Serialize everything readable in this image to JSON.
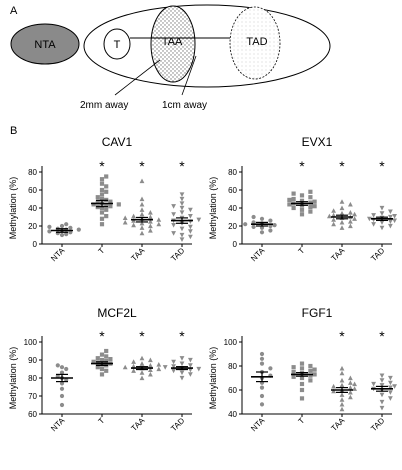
{
  "panel_a": {
    "label": "A",
    "labels": {
      "nta": "NTA",
      "t": "T",
      "taa": "TAA",
      "tad": "TAD"
    },
    "distances": {
      "near": "2mm away",
      "far": "1cm away"
    },
    "colors": {
      "nta_fill": "#8a8a8a",
      "taa_fill": "#9a9a9a"
    }
  },
  "panel_b": {
    "label": "B"
  },
  "chart_data": [
    {
      "type": "scatter",
      "title": "CAV1",
      "ylabel": "Methylation (%)",
      "ylim": [
        0,
        80
      ],
      "yticks": [
        0,
        20,
        40,
        60,
        80
      ],
      "tick_suffix": "",
      "categories": [
        "NTA",
        "T",
        "TAA",
        "TAD"
      ],
      "significant": [
        false,
        true,
        true,
        true
      ],
      "mean": [
        15,
        45,
        27,
        26
      ],
      "sem": [
        2,
        3.5,
        2.5,
        3
      ],
      "groups": [
        [
          10,
          11,
          12,
          13,
          14,
          15,
          16,
          16,
          17,
          18,
          19,
          20,
          22
        ],
        [
          22,
          28,
          31,
          35,
          38,
          40,
          41,
          42,
          43,
          44,
          44,
          45,
          46,
          47,
          49,
          50,
          52,
          55,
          58,
          60,
          64,
          67,
          72,
          75
        ],
        [
          12,
          15,
          18,
          20,
          21,
          22,
          23,
          24,
          25,
          26,
          27,
          28,
          29,
          30,
          31,
          33,
          35,
          38,
          44,
          50,
          70
        ],
        [
          5,
          8,
          10,
          12,
          14,
          17,
          19,
          21,
          23,
          25,
          26,
          27,
          29,
          31,
          33,
          35,
          38,
          40,
          42,
          45,
          50,
          55
        ]
      ]
    },
    {
      "type": "scatter",
      "title": "EVX1",
      "ylabel": "Methylation (%)",
      "ylim": [
        0,
        80
      ],
      "yticks": [
        0,
        20,
        40,
        60,
        80
      ],
      "tick_suffix": "",
      "categories": [
        "NTA",
        "T",
        "TAA",
        "TAD"
      ],
      "significant": [
        false,
        true,
        true,
        true
      ],
      "mean": [
        22,
        45,
        30,
        28
      ],
      "sem": [
        2,
        2,
        2,
        1.8
      ],
      "groups": [
        [
          13,
          15,
          18,
          19,
          20,
          21,
          22,
          23,
          24,
          26,
          28,
          30
        ],
        [
          33,
          36,
          38,
          40,
          41,
          42,
          43,
          44,
          45,
          46,
          47,
          48,
          49,
          50,
          52,
          54,
          56,
          58
        ],
        [
          18,
          20,
          22,
          24,
          25,
          27,
          28,
          29,
          30,
          31,
          32,
          33,
          34,
          35,
          37,
          40,
          44,
          47
        ],
        [
          18,
          20,
          22,
          24,
          25,
          26,
          27,
          28,
          29,
          30,
          31,
          32,
          34,
          36,
          40
        ]
      ]
    },
    {
      "type": "scatter",
      "title": "MCF2L",
      "ylabel": "Methylation (%)",
      "ylim": [
        60,
        100
      ],
      "yticks": [
        60,
        70,
        80,
        90,
        100
      ],
      "tick_suffix": "",
      "categories": [
        "NTA",
        "T",
        "TAA",
        "TAD"
      ],
      "significant": [
        false,
        true,
        true,
        true
      ],
      "mean": [
        80,
        88,
        85.5,
        85.5
      ],
      "sem": [
        2,
        1,
        0.8,
        0.8
      ],
      "groups": [
        [
          65,
          70,
          74,
          77,
          79,
          80,
          81,
          83,
          85,
          86,
          87
        ],
        [
          82,
          84,
          85,
          86,
          87,
          87.5,
          88,
          88.5,
          89,
          89.5,
          90,
          90.5,
          91,
          92,
          93,
          95
        ],
        [
          80,
          82,
          83,
          84,
          84.5,
          85,
          85.5,
          86,
          86.5,
          87,
          87.5,
          88,
          89,
          90,
          91
        ],
        [
          80,
          82,
          83,
          84,
          84.5,
          85,
          85.5,
          86,
          86.5,
          87,
          88,
          89,
          90,
          91
        ]
      ]
    },
    {
      "type": "scatter",
      "title": "FGF1",
      "ylabel": "Methylation (%)",
      "ylim": [
        40,
        100
      ],
      "yticks": [
        40,
        60,
        80,
        100
      ],
      "tick_suffix": "",
      "categories": [
        "NTA",
        "T",
        "TAA",
        "TAD"
      ],
      "significant": [
        false,
        false,
        true,
        true
      ],
      "mean": [
        71,
        73,
        60,
        61
      ],
      "sem": [
        4,
        1.5,
        2,
        2
      ],
      "groups": [
        [
          48,
          55,
          62,
          66,
          70,
          72,
          75,
          78,
          82,
          86,
          90
        ],
        [
          53,
          60,
          65,
          68,
          70,
          71,
          72,
          73,
          74,
          75,
          76,
          77,
          78,
          79,
          80,
          82
        ],
        [
          44,
          48,
          52,
          54,
          56,
          58,
          59,
          60,
          61,
          62,
          63,
          64,
          65,
          66,
          68,
          70,
          74,
          78
        ],
        [
          45,
          50,
          53,
          56,
          58,
          60,
          61,
          62,
          63,
          64,
          65,
          66,
          68,
          70,
          72
        ]
      ]
    }
  ]
}
